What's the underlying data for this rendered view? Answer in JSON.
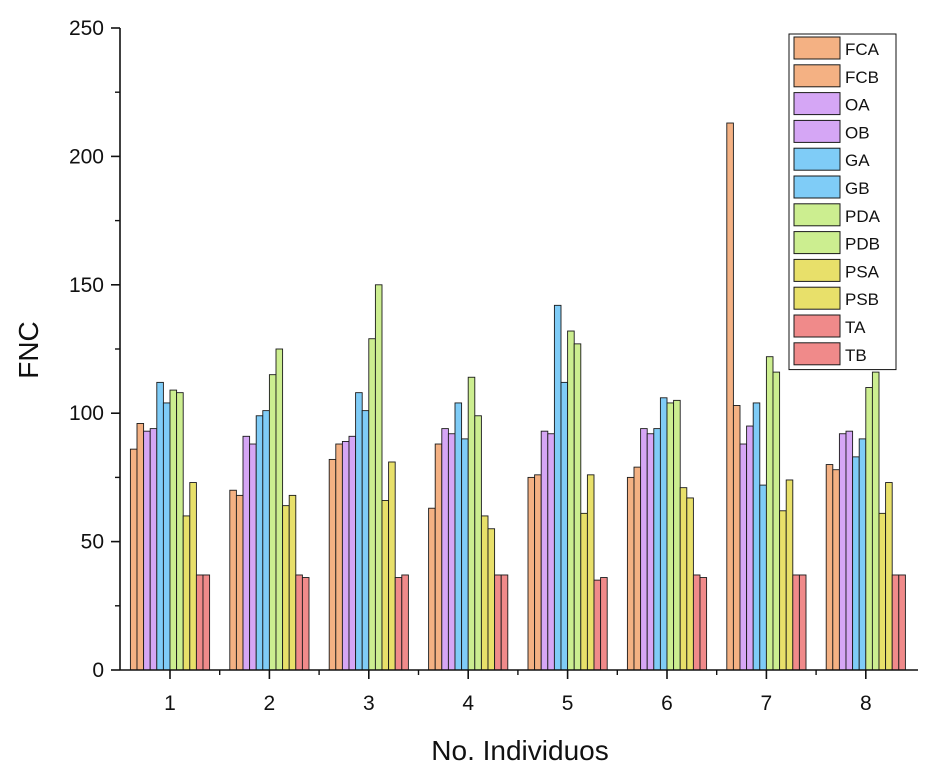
{
  "chart_data": {
    "type": "bar",
    "title": "",
    "xlabel": "No. Individuos",
    "ylabel": "FNC",
    "ylim": [
      0,
      250
    ],
    "yticks": [
      0,
      50,
      100,
      150,
      200,
      250
    ],
    "categories": [
      "1",
      "2",
      "3",
      "4",
      "5",
      "6",
      "7",
      "8"
    ],
    "legend_position": "top-right",
    "series": [
      {
        "name": "FCA",
        "color": "#F4B183",
        "values": [
          86,
          70,
          82,
          63,
          75,
          75,
          213,
          80
        ]
      },
      {
        "name": "FCB",
        "color": "#F4B183",
        "values": [
          96,
          68,
          88,
          88,
          76,
          79,
          103,
          78
        ]
      },
      {
        "name": "OA",
        "color": "#D5A6F5",
        "values": [
          93,
          91,
          89,
          94,
          93,
          94,
          88,
          92
        ]
      },
      {
        "name": "OB",
        "color": "#D5A6F5",
        "values": [
          94,
          88,
          91,
          92,
          92,
          92,
          95,
          93
        ]
      },
      {
        "name": "GA",
        "color": "#7FCCF7",
        "values": [
          112,
          99,
          108,
          104,
          142,
          94,
          104,
          83
        ]
      },
      {
        "name": "GB",
        "color": "#7FCCF7",
        "values": [
          104,
          101,
          101,
          90,
          112,
          106,
          72,
          90
        ]
      },
      {
        "name": "PDA",
        "color": "#CCEE90",
        "values": [
          109,
          115,
          129,
          114,
          132,
          104,
          122,
          110
        ]
      },
      {
        "name": "PDB",
        "color": "#CCEE90",
        "values": [
          108,
          125,
          150,
          99,
          127,
          105,
          116,
          116
        ]
      },
      {
        "name": "PSA",
        "color": "#E8E06A",
        "values": [
          60,
          64,
          66,
          60,
          61,
          71,
          62,
          61
        ]
      },
      {
        "name": "PSB",
        "color": "#E8E06A",
        "values": [
          73,
          68,
          81,
          55,
          76,
          67,
          74,
          73
        ]
      },
      {
        "name": "TA",
        "color": "#F08A8A",
        "values": [
          37,
          37,
          36,
          37,
          35,
          37,
          37,
          37
        ]
      },
      {
        "name": "TB",
        "color": "#F08A8A",
        "values": [
          37,
          36,
          37,
          37,
          36,
          36,
          37,
          37
        ]
      }
    ]
  }
}
